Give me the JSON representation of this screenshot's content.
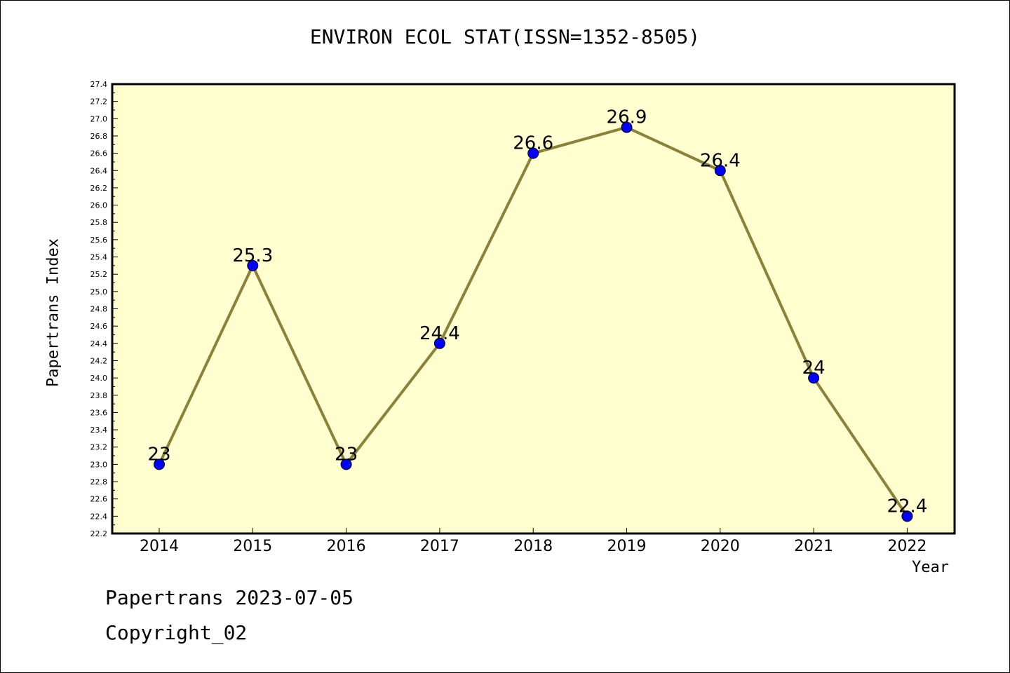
{
  "chart_data": {
    "type": "line",
    "title": "ENVIRON ECOL STAT(ISSN=1352-8505)",
    "xlabel": "Year",
    "ylabel": "Papertrans Index",
    "categories": [
      "2014",
      "2015",
      "2016",
      "2017",
      "2018",
      "2019",
      "2020",
      "2021",
      "2022"
    ],
    "values": [
      23,
      25.3,
      23,
      24.4,
      26.6,
      26.9,
      26.4,
      24,
      22.4
    ],
    "data_labels": [
      "23",
      "25.3",
      "23",
      "24.4",
      "26.6",
      "26.9",
      "26.4",
      "24",
      "22.4"
    ],
    "ylim": [
      22.2,
      27.4
    ],
    "yticks": [
      "22.2",
      "22.4",
      "22.6",
      "22.8",
      "23.0",
      "23.2",
      "23.4",
      "23.6",
      "23.8",
      "24.0",
      "24.2",
      "24.4",
      "24.6",
      "24.8",
      "25.0",
      "25.2",
      "25.4",
      "25.6",
      "25.8",
      "26.0",
      "26.2",
      "26.4",
      "26.6",
      "26.8",
      "27.0",
      "27.2",
      "27.4"
    ],
    "grid": false,
    "colors": {
      "plot_background": "#ffffd0",
      "line": "#8b8138",
      "marker": "#0000ff"
    }
  },
  "footer": {
    "line1": "Papertrans 2023-07-05",
    "line2": "Copyright_02"
  }
}
